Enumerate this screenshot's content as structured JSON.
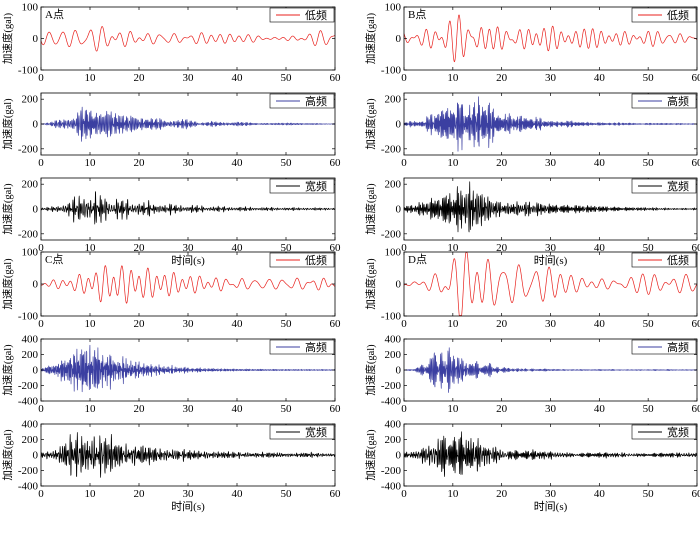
{
  "chart_data": {
    "type": "line",
    "ylabel": "加速度(gal)",
    "xlabel": "时间(s)",
    "x_range": [
      0,
      60
    ],
    "x_ticks": [
      "0",
      "10",
      "20",
      "30",
      "40",
      "50",
      "60"
    ],
    "colors": {
      "低频": "#e8211d",
      "高频": "#3b3fa1",
      "宽频": "#000000"
    },
    "legend_position": "top-right",
    "points": [
      {
        "label": "A点",
        "subplots": [
          {
            "legend": "低频",
            "ylim": [
              -100,
              100
            ],
            "yticks": [
              "100",
              "0",
              "-100"
            ],
            "envelope": {
              "peak_time_s": 12,
              "rise_s": 5,
              "decay_s": 25,
              "floor": 0.55
            },
            "amplitude_gal": 40,
            "dominant_period_s": 2.6,
            "seed": 11
          },
          {
            "legend": "高频",
            "ylim": [
              -250,
              250
            ],
            "yticks": [
              "200",
              "0",
              "-200"
            ],
            "envelope": {
              "peak_time_s": 10,
              "rise_s": 5,
              "decay_s": 12,
              "floor": 0.02
            },
            "amplitude_gal": 140,
            "dominant_period_s": 0.25,
            "seed": 12
          },
          {
            "legend": "宽频",
            "ylim": [
              -250,
              250
            ],
            "yticks": [
              "200",
              "0",
              "-200"
            ],
            "envelope": {
              "peak_time_s": 10,
              "rise_s": 5,
              "decay_s": 12,
              "floor": 0.06
            },
            "amplitude_gal": 140,
            "dominant_period_s": 0.35,
            "seed": 13
          }
        ]
      },
      {
        "label": "B点",
        "subplots": [
          {
            "legend": "低频",
            "ylim": [
              -100,
              100
            ],
            "yticks": [
              "100",
              "0",
              "-100"
            ],
            "envelope": {
              "peak_time_s": 16,
              "rise_s": 8,
              "decay_s": 14,
              "floor": 0.12
            },
            "amplitude_gal": 75,
            "dominant_period_s": 1.7,
            "seed": 21
          },
          {
            "legend": "高频",
            "ylim": [
              -250,
              250
            ],
            "yticks": [
              "200",
              "0",
              "-200"
            ],
            "envelope": {
              "peak_time_s": 14,
              "rise_s": 8,
              "decay_s": 8,
              "floor": 0.02
            },
            "amplitude_gal": 220,
            "dominant_period_s": 0.25,
            "seed": 22
          },
          {
            "legend": "宽频",
            "ylim": [
              -250,
              250
            ],
            "yticks": [
              "200",
              "0",
              "-200"
            ],
            "envelope": {
              "peak_time_s": 14,
              "rise_s": 8,
              "decay_s": 9,
              "floor": 0.05
            },
            "amplitude_gal": 220,
            "dominant_period_s": 0.35,
            "seed": 23
          }
        ]
      },
      {
        "label": "C点",
        "subplots": [
          {
            "legend": "低频",
            "ylim": [
              -100,
              100
            ],
            "yticks": [
              "100",
              "0",
              "-100"
            ],
            "envelope": {
              "peak_time_s": 15,
              "rise_s": 7,
              "decay_s": 22,
              "floor": 0.25
            },
            "amplitude_gal": 60,
            "dominant_period_s": 2.5,
            "seed": 31
          },
          {
            "legend": "高频",
            "ylim": [
              -400,
              400
            ],
            "yticks": [
              "400",
              "200",
              "0",
              "-200",
              "-400"
            ],
            "envelope": {
              "peak_time_s": 10,
              "rise_s": 6,
              "decay_s": 8,
              "floor": 0.02
            },
            "amplitude_gal": 320,
            "dominant_period_s": 0.25,
            "seed": 32
          },
          {
            "legend": "宽频",
            "ylim": [
              -400,
              400
            ],
            "yticks": [
              "400",
              "200",
              "0",
              "-200",
              "-400"
            ],
            "envelope": {
              "peak_time_s": 10,
              "rise_s": 6,
              "decay_s": 10,
              "floor": 0.08
            },
            "amplitude_gal": 290,
            "dominant_period_s": 0.35,
            "seed": 33
          }
        ]
      },
      {
        "label": "D点",
        "subplots": [
          {
            "legend": "低频",
            "ylim": [
              -100,
              100
            ],
            "yticks": [
              "100",
              "0",
              "-100"
            ],
            "envelope": {
              "peak_time_s": 12,
              "rise_s": 5,
              "decay_s": 14,
              "floor": 0.25
            },
            "amplitude_gal": 120,
            "dominant_period_s": 2.6,
            "seed": 41
          },
          {
            "legend": "高频",
            "ylim": [
              -400,
              400
            ],
            "yticks": [
              "400",
              "200",
              "0",
              "-200",
              "-400"
            ],
            "envelope": {
              "peak_time_s": 9,
              "rise_s": 4,
              "decay_s": 5,
              "floor": 0.02
            },
            "amplitude_gal": 290,
            "dominant_period_s": 0.25,
            "seed": 42
          },
          {
            "legend": "宽频",
            "ylim": [
              -400,
              400
            ],
            "yticks": [
              "400",
              "200",
              "0",
              "-200",
              "-400"
            ],
            "envelope": {
              "peak_time_s": 9,
              "rise_s": 4,
              "decay_s": 7,
              "floor": 0.07
            },
            "amplitude_gal": 300,
            "dominant_period_s": 0.35,
            "seed": 43
          }
        ]
      }
    ]
  }
}
